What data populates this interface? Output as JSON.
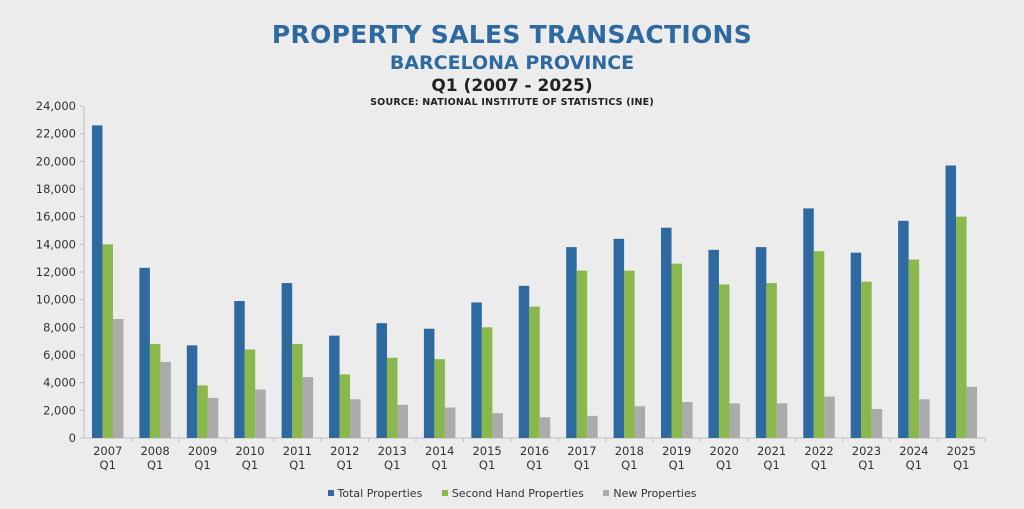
{
  "titles": {
    "main": "PROPERTY SALES TRANSACTIONS",
    "region": "BARCELONA PROVINCE",
    "period": "Q1 (2007 - 2025)",
    "source": "SOURCE: NATIONAL INSTITUTE OF STATISTICS (INE)"
  },
  "colors": {
    "total": "#2e6aa0",
    "second_hand": "#8ab84d",
    "new": "#ababab",
    "axis": "#bfbfbf",
    "text": "#333333"
  },
  "chart_data": {
    "type": "bar",
    "title": "PROPERTY SALES TRANSACTIONS",
    "subtitle": "BARCELONA PROVINCE",
    "categories": [
      "2007 Q1",
      "2008 Q1",
      "2009 Q1",
      "2010 Q1",
      "2011 Q1",
      "2012 Q1",
      "2013 Q1",
      "2014 Q1",
      "2015 Q1",
      "2016 Q1",
      "2017 Q1",
      "2018 Q1",
      "2019 Q1",
      "2020 Q1",
      "2021 Q1",
      "2022 Q1",
      "2023 Q1",
      "2024 Q1",
      "2025 Q1"
    ],
    "category_years": [
      "2007",
      "2008",
      "2009",
      "2010",
      "2011",
      "2012",
      "2013",
      "2014",
      "2015",
      "2016",
      "2017",
      "2018",
      "2019",
      "2020",
      "2021",
      "2022",
      "2023",
      "2024",
      "2025"
    ],
    "category_quarters": [
      "Q1",
      "Q1",
      "Q1",
      "Q1",
      "Q1",
      "Q1",
      "Q1",
      "Q1",
      "Q1",
      "Q1",
      "Q1",
      "Q1",
      "Q1",
      "Q1",
      "Q1",
      "Q1",
      "Q1",
      "Q1",
      "Q1"
    ],
    "series": [
      {
        "name": "Total Properties",
        "values": [
          22600,
          12300,
          6700,
          9900,
          11200,
          7400,
          8300,
          7900,
          9800,
          11000,
          13800,
          14400,
          15200,
          13600,
          13800,
          16600,
          13400,
          15700,
          19700
        ]
      },
      {
        "name": "Second Hand Properties",
        "values": [
          14000,
          6800,
          3800,
          6400,
          6800,
          4600,
          5800,
          5700,
          8000,
          9500,
          12100,
          12100,
          12600,
          11100,
          11200,
          13500,
          11300,
          12900,
          16000
        ]
      },
      {
        "name": "New Properties",
        "values": [
          8600,
          5500,
          2900,
          3500,
          4400,
          2800,
          2400,
          2200,
          1800,
          1500,
          1600,
          2300,
          2600,
          2500,
          2500,
          3000,
          2100,
          2800,
          3700
        ]
      }
    ],
    "ylim": [
      0,
      24000
    ],
    "yticks": [
      "0",
      "2,000",
      "4,000",
      "6,000",
      "8,000",
      "10,000",
      "12,000",
      "14,000",
      "16,000",
      "18,000",
      "20,000",
      "22,000",
      "24,000"
    ],
    "ytick_values": [
      0,
      2000,
      4000,
      6000,
      8000,
      10000,
      12000,
      14000,
      16000,
      18000,
      20000,
      22000,
      24000
    ],
    "grid": false,
    "legend": "bottom"
  }
}
